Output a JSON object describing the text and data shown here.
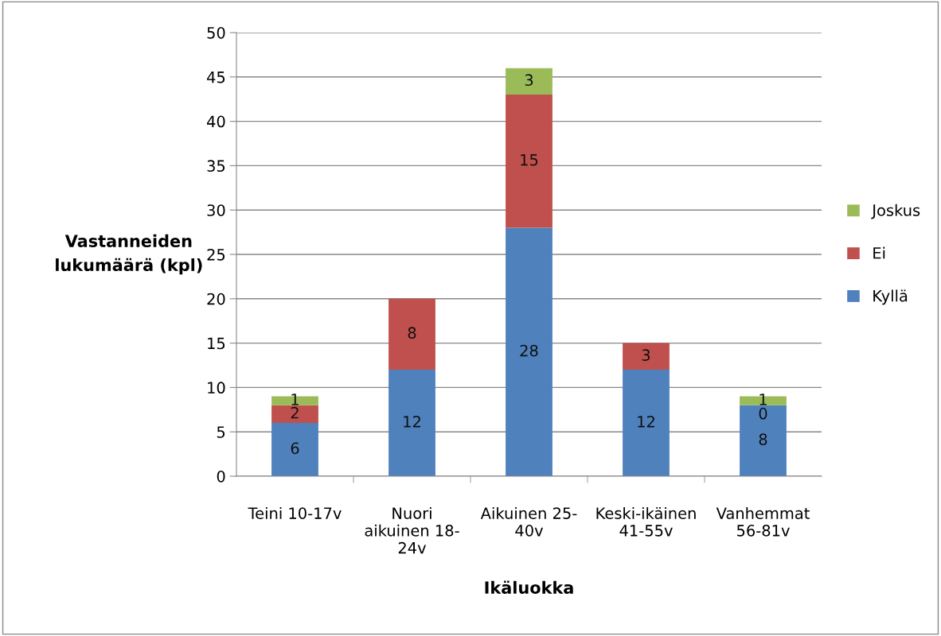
{
  "chart_data": {
    "type": "bar",
    "stacked": true,
    "xlabel": "Ikäluokka",
    "ylabel": "Vastanneiden\nlukumäärä (kpl)",
    "categories": [
      "Teini 10-17v",
      "Nuori\naikuinen 18-\n24v",
      "Aikuinen 25-\n40v",
      "Keski-ikäinen\n41-55v",
      "Vanhemmat\n56-81v"
    ],
    "series": [
      {
        "name": "Kyllä",
        "color": "#4f81bd",
        "values": [
          6,
          12,
          28,
          12,
          8
        ],
        "value_labels": [
          "6",
          "12",
          "28",
          "12",
          "8"
        ]
      },
      {
        "name": "Ei",
        "color": "#c0504d",
        "values": [
          2,
          8,
          15,
          3,
          0
        ],
        "value_labels": [
          "2",
          "8",
          "15",
          "3",
          "0"
        ]
      },
      {
        "name": "Joskus",
        "color": "#9bbb59",
        "values": [
          1,
          0,
          3,
          0,
          1
        ],
        "value_labels": [
          "1",
          null,
          "3",
          null,
          "1"
        ]
      }
    ],
    "ylim": [
      0,
      50
    ],
    "yticks": [
      0,
      5,
      10,
      15,
      20,
      25,
      30,
      35,
      40,
      45,
      50
    ],
    "grid": "y",
    "legend": "right"
  }
}
